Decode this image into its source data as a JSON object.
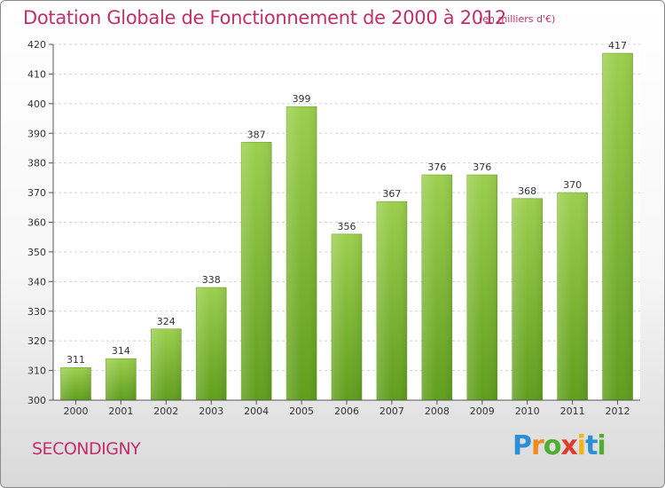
{
  "header": {
    "title": "Dotation Globale de Fonctionnement de 2000 à 2012",
    "subtitle": "(en milliers d'€)"
  },
  "footer": {
    "commune": "SECONDIGNY",
    "logo": {
      "letters": [
        "P",
        "r",
        "o",
        "x",
        "i",
        "t",
        "i"
      ],
      "colors": [
        "#2a8fd6",
        "#f18a1b",
        "#4fae32",
        "#e23b2e",
        "#f0b41a",
        "#2a8fd6",
        "#4fae32"
      ]
    }
  },
  "chart_data": {
    "type": "bar",
    "title": "Dotation Globale de Fonctionnement de 2000 à 2012",
    "subtitle": "(en milliers d'€)",
    "categories": [
      "2000",
      "2001",
      "2002",
      "2003",
      "2004",
      "2005",
      "2006",
      "2007",
      "2008",
      "2009",
      "2010",
      "2011",
      "2012"
    ],
    "values": [
      311,
      314,
      324,
      338,
      387,
      399,
      356,
      367,
      376,
      376,
      368,
      370,
      417
    ],
    "ylim": [
      300,
      420
    ],
    "yticks": [
      300,
      310,
      320,
      330,
      340,
      350,
      360,
      370,
      380,
      390,
      400,
      410,
      420
    ],
    "grid": true,
    "bar_color": "#8cc63f"
  }
}
